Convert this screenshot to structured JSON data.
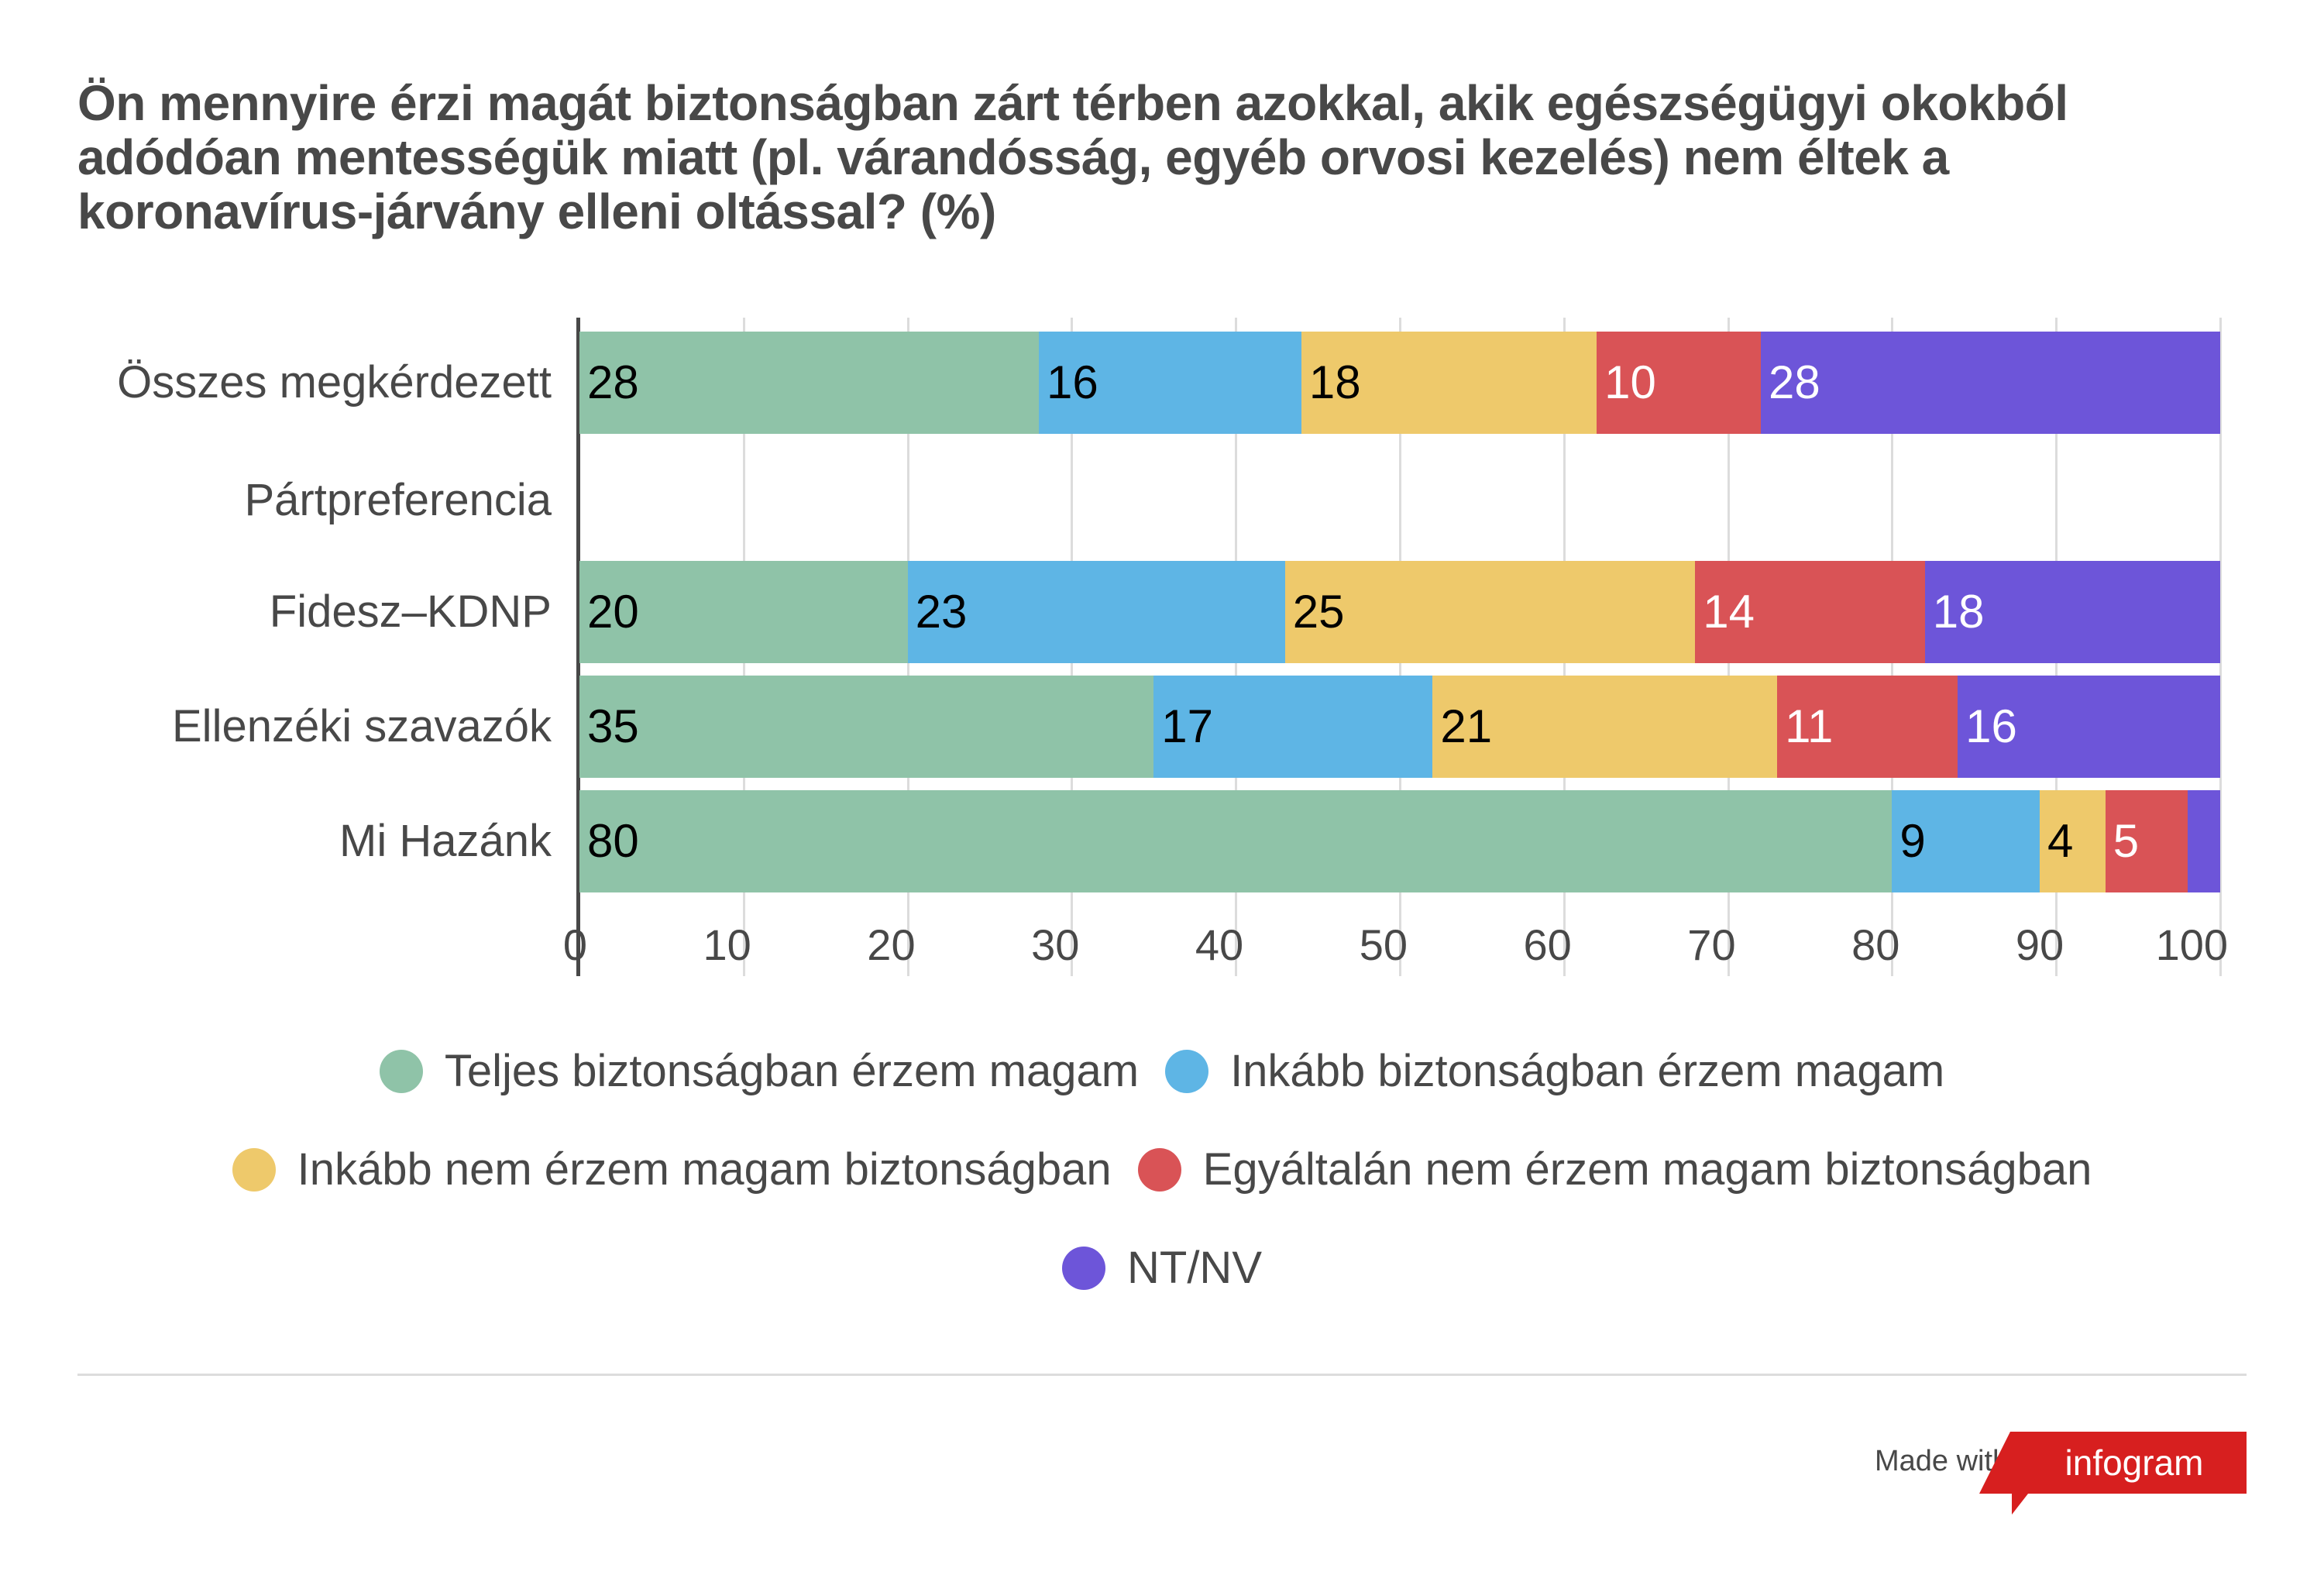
{
  "title": "Ön mennyire érzi magát biztonságban zárt térben azokkal, akik egészségügyi okokból adódóan mentességük miatt (pl. várandósság, egyéb orvosi kezelés) nem éltek a koronavírus-járvány elleni oltással? (%)",
  "chart_data": {
    "type": "bar",
    "orientation": "horizontal",
    "stacked": true,
    "title": "Ön mennyire érzi magát biztonságban zárt térben azokkal, akik egészségügyi okokból adódóan mentességük miatt (pl. várandósság, egyéb orvosi kezelés) nem éltek a koronavírus-járvány elleni oltással? (%)",
    "categories": [
      "Összes megkérdezett",
      "Pártpreferencia",
      "Fidesz–KDNP",
      "Ellenzéki szavazók",
      "Mi Hazánk"
    ],
    "series": [
      {
        "name": "Teljes biztonságban érzem magam",
        "color": "#8fc3a8",
        "label_color": "#000000",
        "values": [
          28,
          null,
          20,
          35,
          80
        ]
      },
      {
        "name": "Inkább biztonságban érzem magam",
        "color": "#5eb5e5",
        "label_color": "#000000",
        "values": [
          16,
          null,
          23,
          17,
          9
        ]
      },
      {
        "name": "Inkább nem érzem magam biztonságban",
        "color": "#eec96b",
        "label_color": "#000000",
        "values": [
          18,
          null,
          25,
          21,
          4
        ]
      },
      {
        "name": "Egyáltalán nem érzem magam biztonságban",
        "color": "#d95356",
        "label_color": "#ffffff",
        "values": [
          10,
          null,
          14,
          11,
          5
        ]
      },
      {
        "name": "NT/NV",
        "color": "#6d55d9",
        "label_color": "#ffffff",
        "values": [
          28,
          null,
          18,
          16,
          2
        ]
      }
    ],
    "value_labels_shown": [
      [
        true,
        null,
        true,
        true,
        true
      ],
      [
        true,
        null,
        true,
        true,
        true
      ],
      [
        true,
        null,
        true,
        true,
        true
      ],
      [
        true,
        null,
        true,
        true,
        true
      ],
      [
        true,
        null,
        true,
        true,
        false
      ]
    ],
    "xlim": [
      0,
      100
    ],
    "xticks": [
      "0",
      "10",
      "20",
      "30",
      "40",
      "50",
      "60",
      "70",
      "80",
      "90",
      "100"
    ],
    "xlabel": "",
    "ylabel": "",
    "grid": true,
    "legend_position": "bottom"
  },
  "footer": {
    "made_with": "Made with",
    "logo_text": "infogram",
    "logo_color": "#d71f1f"
  }
}
